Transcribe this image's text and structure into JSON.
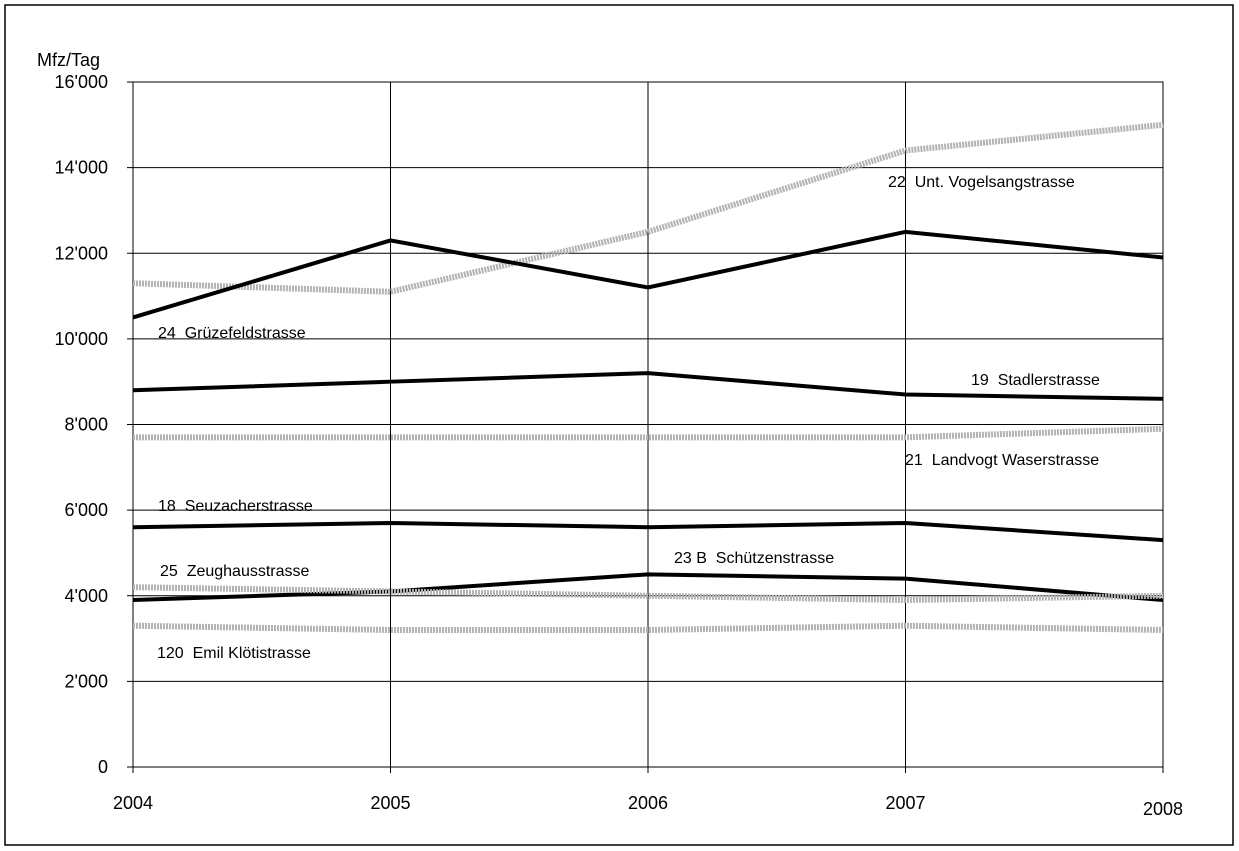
{
  "chart_data": {
    "type": "line",
    "y_axis_label": "Mfz/Tag",
    "x": [
      "2004",
      "2005",
      "2006",
      "2007",
      "2008"
    ],
    "ylim": [
      0,
      16000
    ],
    "yticks": [
      0,
      {
        "value": 2000,
        "label": "2'000"
      },
      {
        "value": 4000,
        "label": "4'000"
      },
      {
        "value": 6000,
        "label": "6'000"
      },
      {
        "value": 8000,
        "label": "8'000"
      },
      {
        "value": 10000,
        "label": "10'000"
      },
      {
        "value": 12000,
        "label": "12'000"
      },
      {
        "value": 14000,
        "label": "14'000"
      },
      {
        "value": 16000,
        "label": "16'000"
      }
    ],
    "grid": true,
    "series": [
      {
        "name": "22  Unt. Vogelsangstrasse",
        "color": "#b3b3b3",
        "values": [
          11300,
          11100,
          12500,
          14400,
          15000
        ]
      },
      {
        "name": "24  Grüzefeldstrasse",
        "color": "#000000",
        "values": [
          10500,
          12300,
          11200,
          12500,
          11900
        ]
      },
      {
        "name": "19  Stadlerstrasse",
        "color": "#000000",
        "values": [
          8800,
          9000,
          9200,
          8700,
          8600
        ]
      },
      {
        "name": "21  Landvogt Waserstrasse",
        "color": "#b3b3b3",
        "values": [
          7700,
          7700,
          7700,
          7700,
          7900
        ]
      },
      {
        "name": "18  Seuzacherstrasse",
        "color": "#000000",
        "values": [
          5600,
          5700,
          5600,
          5700,
          5300
        ]
      },
      {
        "name": "23 B  Schützenstrasse",
        "color": "#000000",
        "values": [
          3900,
          4100,
          4500,
          4400,
          3900
        ]
      },
      {
        "name": "25  Zeughausstrasse",
        "color": "#b3b3b3",
        "values": [
          4200,
          4100,
          4000,
          3900,
          4000
        ]
      },
      {
        "name": "120  Emil Klötistrasse",
        "color": "#b3b3b3",
        "values": [
          3300,
          3200,
          3200,
          3300,
          3200
        ]
      }
    ]
  }
}
